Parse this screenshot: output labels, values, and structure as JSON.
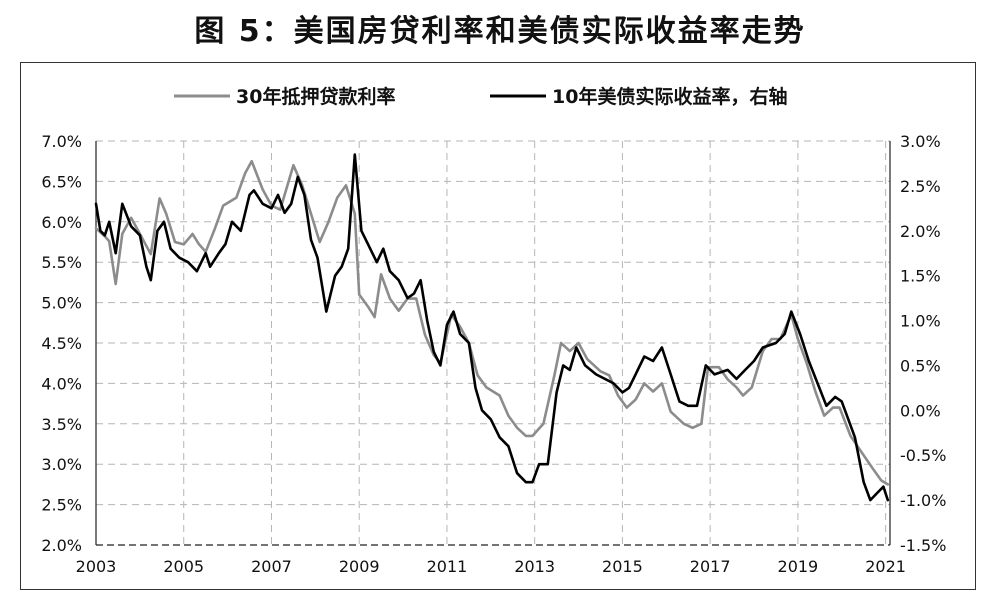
{
  "title": "图 5：美国房贷利率和美债实际收益率走势",
  "chart_data": {
    "type": "line",
    "title": "图 5：美国房贷利率和美债实际收益率走势",
    "legend_position": "top",
    "grid": true,
    "x_ticks": [
      "2003",
      "2005",
      "2007",
      "2009",
      "2011",
      "2013",
      "2015",
      "2017",
      "2019",
      "2021"
    ],
    "xlim": [
      2003.0,
      2021.1
    ],
    "left_axis": {
      "ylim": [
        2.0,
        7.0
      ],
      "ticks": [
        "2.0%",
        "2.5%",
        "3.0%",
        "3.5%",
        "4.0%",
        "4.5%",
        "5.0%",
        "5.5%",
        "6.0%",
        "6.5%",
        "7.0%"
      ]
    },
    "right_axis": {
      "ylim": [
        -1.5,
        3.0
      ],
      "ticks": [
        "-1.5%",
        "-1.0%",
        "-0.5%",
        "0.0%",
        "0.5%",
        "1.0%",
        "1.5%",
        "2.0%",
        "2.5%",
        "3.0%"
      ]
    },
    "series": [
      {
        "name": "30年抵押贷款利率",
        "axis": "left",
        "color": "#8c8c8c",
        "points": [
          [
            2003.0,
            5.92
          ],
          [
            2003.2,
            5.82
          ],
          [
            2003.3,
            5.76
          ],
          [
            2003.45,
            5.23
          ],
          [
            2003.6,
            5.85
          ],
          [
            2003.8,
            6.05
          ],
          [
            2004.0,
            5.85
          ],
          [
            2004.25,
            5.6
          ],
          [
            2004.45,
            6.29
          ],
          [
            2004.6,
            6.1
          ],
          [
            2004.8,
            5.75
          ],
          [
            2005.0,
            5.72
          ],
          [
            2005.2,
            5.85
          ],
          [
            2005.35,
            5.72
          ],
          [
            2005.5,
            5.63
          ],
          [
            2005.7,
            5.9
          ],
          [
            2005.9,
            6.2
          ],
          [
            2006.2,
            6.3
          ],
          [
            2006.4,
            6.6
          ],
          [
            2006.55,
            6.75
          ],
          [
            2006.8,
            6.4
          ],
          [
            2007.0,
            6.2
          ],
          [
            2007.2,
            6.15
          ],
          [
            2007.5,
            6.7
          ],
          [
            2007.7,
            6.45
          ],
          [
            2007.9,
            6.1
          ],
          [
            2008.1,
            5.75
          ],
          [
            2008.3,
            6.0
          ],
          [
            2008.5,
            6.3
          ],
          [
            2008.7,
            6.45
          ],
          [
            2008.9,
            6.1
          ],
          [
            2009.0,
            5.1
          ],
          [
            2009.2,
            4.95
          ],
          [
            2009.35,
            4.82
          ],
          [
            2009.5,
            5.35
          ],
          [
            2009.7,
            5.05
          ],
          [
            2009.9,
            4.9
          ],
          [
            2010.1,
            5.05
          ],
          [
            2010.3,
            5.05
          ],
          [
            2010.5,
            4.6
          ],
          [
            2010.7,
            4.35
          ],
          [
            2010.85,
            4.25
          ],
          [
            2011.1,
            4.85
          ],
          [
            2011.3,
            4.7
          ],
          [
            2011.5,
            4.5
          ],
          [
            2011.7,
            4.1
          ],
          [
            2011.9,
            3.95
          ],
          [
            2012.2,
            3.85
          ],
          [
            2012.4,
            3.6
          ],
          [
            2012.6,
            3.45
          ],
          [
            2012.8,
            3.35
          ],
          [
            2012.95,
            3.35
          ],
          [
            2013.2,
            3.5
          ],
          [
            2013.45,
            4.1
          ],
          [
            2013.6,
            4.5
          ],
          [
            2013.8,
            4.4
          ],
          [
            2014.0,
            4.5
          ],
          [
            2014.2,
            4.3
          ],
          [
            2014.5,
            4.15
          ],
          [
            2014.7,
            4.1
          ],
          [
            2014.9,
            3.85
          ],
          [
            2015.1,
            3.7
          ],
          [
            2015.3,
            3.8
          ],
          [
            2015.5,
            4.0
          ],
          [
            2015.7,
            3.9
          ],
          [
            2015.9,
            4.0
          ],
          [
            2016.1,
            3.65
          ],
          [
            2016.4,
            3.5
          ],
          [
            2016.6,
            3.45
          ],
          [
            2016.8,
            3.5
          ],
          [
            2016.95,
            4.2
          ],
          [
            2017.2,
            4.2
          ],
          [
            2017.4,
            4.05
          ],
          [
            2017.6,
            3.95
          ],
          [
            2017.75,
            3.85
          ],
          [
            2017.95,
            3.95
          ],
          [
            2018.2,
            4.4
          ],
          [
            2018.4,
            4.55
          ],
          [
            2018.6,
            4.55
          ],
          [
            2018.85,
            4.85
          ],
          [
            2019.0,
            4.55
          ],
          [
            2019.2,
            4.25
          ],
          [
            2019.4,
            3.9
          ],
          [
            2019.6,
            3.6
          ],
          [
            2019.8,
            3.7
          ],
          [
            2019.95,
            3.7
          ],
          [
            2020.2,
            3.35
          ],
          [
            2020.45,
            3.15
          ],
          [
            2020.7,
            2.95
          ],
          [
            2020.9,
            2.8
          ],
          [
            2021.05,
            2.75
          ]
        ]
      },
      {
        "name": "10年美债实际收益率，右轴",
        "axis": "right",
        "color": "#000000",
        "points": [
          [
            2003.0,
            2.3
          ],
          [
            2003.1,
            2.0
          ],
          [
            2003.2,
            1.95
          ],
          [
            2003.3,
            2.1
          ],
          [
            2003.45,
            1.75
          ],
          [
            2003.6,
            2.3
          ],
          [
            2003.8,
            2.05
          ],
          [
            2004.0,
            1.95
          ],
          [
            2004.15,
            1.6
          ],
          [
            2004.25,
            1.45
          ],
          [
            2004.4,
            2.0
          ],
          [
            2004.55,
            2.1
          ],
          [
            2004.7,
            1.8
          ],
          [
            2004.9,
            1.7
          ],
          [
            2005.1,
            1.65
          ],
          [
            2005.3,
            1.55
          ],
          [
            2005.5,
            1.75
          ],
          [
            2005.6,
            1.6
          ],
          [
            2005.8,
            1.75
          ],
          [
            2005.95,
            1.85
          ],
          [
            2006.1,
            2.1
          ],
          [
            2006.3,
            2.0
          ],
          [
            2006.5,
            2.4
          ],
          [
            2006.6,
            2.45
          ],
          [
            2006.8,
            2.3
          ],
          [
            2007.0,
            2.25
          ],
          [
            2007.15,
            2.4
          ],
          [
            2007.3,
            2.2
          ],
          [
            2007.45,
            2.3
          ],
          [
            2007.6,
            2.6
          ],
          [
            2007.75,
            2.4
          ],
          [
            2007.9,
            1.9
          ],
          [
            2008.05,
            1.7
          ],
          [
            2008.25,
            1.1
          ],
          [
            2008.45,
            1.5
          ],
          [
            2008.6,
            1.6
          ],
          [
            2008.75,
            1.8
          ],
          [
            2008.9,
            2.85
          ],
          [
            2009.05,
            2.0
          ],
          [
            2009.2,
            1.85
          ],
          [
            2009.4,
            1.65
          ],
          [
            2009.55,
            1.8
          ],
          [
            2009.7,
            1.55
          ],
          [
            2009.9,
            1.45
          ],
          [
            2010.1,
            1.25
          ],
          [
            2010.25,
            1.3
          ],
          [
            2010.4,
            1.45
          ],
          [
            2010.55,
            1.0
          ],
          [
            2010.7,
            0.65
          ],
          [
            2010.85,
            0.5
          ],
          [
            2011.0,
            0.95
          ],
          [
            2011.15,
            1.1
          ],
          [
            2011.3,
            0.85
          ],
          [
            2011.5,
            0.75
          ],
          [
            2011.65,
            0.25
          ],
          [
            2011.8,
            0.0
          ],
          [
            2012.0,
            -0.1
          ],
          [
            2012.2,
            -0.3
          ],
          [
            2012.4,
            -0.4
          ],
          [
            2012.6,
            -0.7
          ],
          [
            2012.8,
            -0.8
          ],
          [
            2012.95,
            -0.8
          ],
          [
            2013.1,
            -0.6
          ],
          [
            2013.3,
            -0.6
          ],
          [
            2013.5,
            0.2
          ],
          [
            2013.65,
            0.5
          ],
          [
            2013.8,
            0.45
          ],
          [
            2013.95,
            0.7
          ],
          [
            2014.15,
            0.5
          ],
          [
            2014.4,
            0.4
          ],
          [
            2014.6,
            0.35
          ],
          [
            2014.8,
            0.3
          ],
          [
            2015.0,
            0.2
          ],
          [
            2015.15,
            0.25
          ],
          [
            2015.3,
            0.4
          ],
          [
            2015.5,
            0.6
          ],
          [
            2015.7,
            0.55
          ],
          [
            2015.9,
            0.7
          ],
          [
            2016.1,
            0.4
          ],
          [
            2016.3,
            0.1
          ],
          [
            2016.5,
            0.05
          ],
          [
            2016.7,
            0.05
          ],
          [
            2016.9,
            0.5
          ],
          [
            2017.1,
            0.4
          ],
          [
            2017.4,
            0.45
          ],
          [
            2017.6,
            0.35
          ],
          [
            2017.8,
            0.45
          ],
          [
            2018.0,
            0.55
          ],
          [
            2018.2,
            0.7
          ],
          [
            2018.5,
            0.75
          ],
          [
            2018.7,
            0.85
          ],
          [
            2018.85,
            1.1
          ],
          [
            2019.05,
            0.85
          ],
          [
            2019.25,
            0.55
          ],
          [
            2019.45,
            0.3
          ],
          [
            2019.65,
            0.05
          ],
          [
            2019.85,
            0.15
          ],
          [
            2020.0,
            0.1
          ],
          [
            2020.15,
            -0.1
          ],
          [
            2020.3,
            -0.3
          ],
          [
            2020.5,
            -0.8
          ],
          [
            2020.65,
            -1.0
          ],
          [
            2020.85,
            -0.9
          ],
          [
            2020.95,
            -0.85
          ],
          [
            2021.05,
            -1.0
          ]
        ]
      }
    ]
  }
}
